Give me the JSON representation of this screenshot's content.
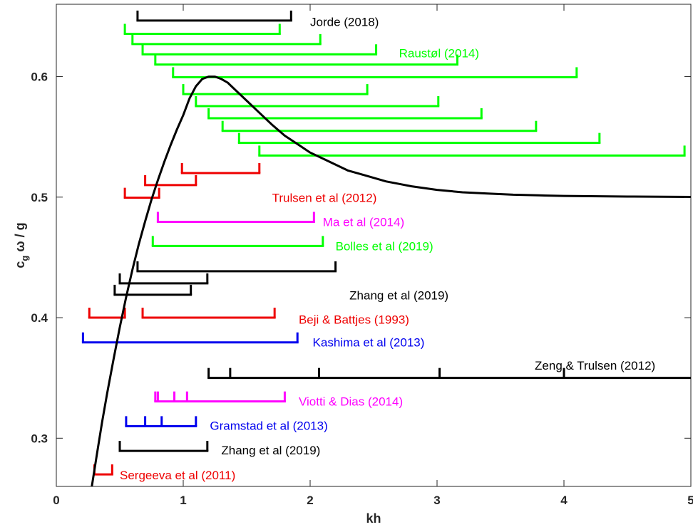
{
  "chart_data": {
    "type": "line",
    "xlabel": "kh",
    "ylabel": "c_g ω / g",
    "xlim": [
      0,
      5
    ],
    "ylim": [
      0.26,
      0.66
    ],
    "xticks": [
      0,
      1,
      2,
      3,
      4,
      5
    ],
    "yticks": [
      0.3,
      0.4,
      0.5,
      0.6
    ],
    "grid": false,
    "legend": "none",
    "colors": {
      "black": "#000000",
      "green": "#00ff00",
      "red": "#ee0000",
      "magenta": "#ff00ff",
      "blue": "#0000ee"
    },
    "curve": {
      "name": "",
      "color": "black",
      "points": [
        [
          0.28,
          0.26
        ],
        [
          0.32,
          0.287
        ],
        [
          0.36,
          0.313
        ],
        [
          0.4,
          0.337
        ],
        [
          0.45,
          0.365
        ],
        [
          0.5,
          0.392
        ],
        [
          0.55,
          0.417
        ],
        [
          0.6,
          0.44
        ],
        [
          0.65,
          0.461
        ],
        [
          0.7,
          0.48
        ],
        [
          0.75,
          0.498
        ],
        [
          0.8,
          0.514
        ],
        [
          0.85,
          0.529
        ],
        [
          0.9,
          0.543
        ],
        [
          0.95,
          0.556
        ],
        [
          1.0,
          0.568
        ],
        [
          1.05,
          0.582
        ],
        [
          1.1,
          0.592
        ],
        [
          1.15,
          0.598
        ],
        [
          1.2,
          0.6
        ],
        [
          1.25,
          0.6
        ],
        [
          1.3,
          0.598
        ],
        [
          1.35,
          0.595
        ],
        [
          1.4,
          0.59
        ],
        [
          1.5,
          0.58
        ],
        [
          1.6,
          0.57
        ],
        [
          1.7,
          0.56
        ],
        [
          1.8,
          0.551
        ],
        [
          1.9,
          0.544
        ],
        [
          2.0,
          0.537
        ],
        [
          2.1,
          0.532
        ],
        [
          2.2,
          0.527
        ],
        [
          2.3,
          0.522
        ],
        [
          2.4,
          0.519
        ],
        [
          2.5,
          0.516
        ],
        [
          2.6,
          0.513
        ],
        [
          2.7,
          0.511
        ],
        [
          2.8,
          0.509
        ],
        [
          3.0,
          0.506
        ],
        [
          3.2,
          0.504
        ],
        [
          3.4,
          0.503
        ],
        [
          3.6,
          0.502
        ],
        [
          3.8,
          0.5015
        ],
        [
          4.0,
          0.501
        ],
        [
          4.5,
          0.5005
        ],
        [
          5.0,
          0.5002
        ]
      ]
    },
    "brackets": [
      {
        "color": "black",
        "y": 0.6465,
        "x0": 0.64,
        "x1": 1.85,
        "ticks": []
      },
      {
        "color": "green",
        "y": 0.6355,
        "x0": 0.54,
        "x1": 1.76,
        "ticks": []
      },
      {
        "color": "green",
        "y": 0.627,
        "x0": 0.6,
        "x1": 2.08,
        "ticks": []
      },
      {
        "color": "green",
        "y": 0.6185,
        "x0": 0.68,
        "x1": 2.52,
        "ticks": []
      },
      {
        "color": "green",
        "y": 0.61,
        "x0": 0.78,
        "x1": 3.16,
        "ticks": []
      },
      {
        "color": "green",
        "y": 0.5995,
        "x0": 0.92,
        "x1": 4.1,
        "ticks": []
      },
      {
        "color": "green",
        "y": 0.5855,
        "x0": 1.0,
        "x1": 2.45,
        "ticks": []
      },
      {
        "color": "green",
        "y": 0.5755,
        "x0": 1.1,
        "x1": 3.01,
        "ticks": []
      },
      {
        "color": "green",
        "y": 0.5655,
        "x0": 1.2,
        "x1": 3.35,
        "ticks": []
      },
      {
        "color": "green",
        "y": 0.555,
        "x0": 1.31,
        "x1": 3.78,
        "ticks": []
      },
      {
        "color": "green",
        "y": 0.545,
        "x0": 1.44,
        "x1": 4.28,
        "ticks": []
      },
      {
        "color": "green",
        "y": 0.5345,
        "x0": 1.6,
        "x1": 4.95,
        "ticks": []
      },
      {
        "color": "red",
        "y": 0.52,
        "x0": 0.99,
        "x1": 1.6,
        "ticks": []
      },
      {
        "color": "red",
        "y": 0.51,
        "x0": 0.7,
        "x1": 1.1,
        "ticks": []
      },
      {
        "color": "red",
        "y": 0.4995,
        "x0": 0.54,
        "x1": 0.81,
        "ticks": []
      },
      {
        "color": "magenta",
        "y": 0.4795,
        "x0": 0.8,
        "x1": 2.03,
        "ticks": []
      },
      {
        "color": "green",
        "y": 0.4595,
        "x0": 0.76,
        "x1": 2.1,
        "ticks": []
      },
      {
        "color": "black",
        "y": 0.4385,
        "x0": 0.64,
        "x1": 2.2,
        "ticks": []
      },
      {
        "color": "black",
        "y": 0.4285,
        "x0": 0.5,
        "x1": 1.19,
        "ticks": []
      },
      {
        "color": "black",
        "y": 0.419,
        "x0": 0.46,
        "x1": 1.06,
        "ticks": []
      },
      {
        "color": "red",
        "y": 0.4,
        "x0": 0.26,
        "x1": 0.54,
        "ticks": []
      },
      {
        "color": "red",
        "y": 0.4,
        "x0": 0.68,
        "x1": 1.72,
        "ticks": []
      },
      {
        "color": "blue",
        "y": 0.3795,
        "x0": 0.21,
        "x1": 1.9,
        "ticks": []
      },
      {
        "color": "black",
        "y": 0.35,
        "x0": 1.2,
        "x1": 5.0,
        "ticks": [
          1.37,
          2.07,
          3.02,
          4.0
        ]
      },
      {
        "color": "magenta",
        "y": 0.3305,
        "x0": 0.78,
        "x1": 1.8,
        "ticks": [
          0.8,
          0.93,
          1.03
        ]
      },
      {
        "color": "blue",
        "y": 0.31,
        "x0": 0.55,
        "x1": 1.1,
        "ticks": [
          0.7,
          0.83
        ]
      },
      {
        "color": "black",
        "y": 0.2895,
        "x0": 0.5,
        "x1": 1.19,
        "ticks": []
      },
      {
        "color": "red",
        "y": 0.27,
        "x0": 0.3,
        "x1": 0.44,
        "ticks": []
      }
    ],
    "annotations": [
      {
        "text": "Jorde (2018)",
        "x": 2.0,
        "y": 0.6455,
        "color": "black"
      },
      {
        "text": "Raustøl (2014)",
        "x": 2.7,
        "y": 0.6195,
        "color": "green"
      },
      {
        "text": "Trulsen et al (2012)",
        "x": 1.7,
        "y": 0.4995,
        "color": "red"
      },
      {
        "text": "Ma et al (2014)",
        "x": 2.1,
        "y": 0.4795,
        "color": "magenta"
      },
      {
        "text": "Bolles et al (2019)",
        "x": 2.2,
        "y": 0.4595,
        "color": "green"
      },
      {
        "text": "Zhang et al (2019)",
        "x": 2.31,
        "y": 0.4185,
        "color": "black"
      },
      {
        "text": "Beji & Battjes (1993)",
        "x": 1.91,
        "y": 0.3985,
        "color": "red"
      },
      {
        "text": "Kashima et al (2013)",
        "x": 2.02,
        "y": 0.3795,
        "color": "blue"
      },
      {
        "text": "Zeng & Trulsen (2012)",
        "x": 3.77,
        "y": 0.3605,
        "color": "black"
      },
      {
        "text": "Viotti & Dias (2014)",
        "x": 1.91,
        "y": 0.3305,
        "color": "magenta"
      },
      {
        "text": "Gramstad et al (2013)",
        "x": 1.21,
        "y": 0.3105,
        "color": "blue"
      },
      {
        "text": "Zhang et al (2019)",
        "x": 1.3,
        "y": 0.29,
        "color": "black"
      },
      {
        "text": "Sergeeva et al (2011)",
        "x": 0.5,
        "y": 0.2695,
        "color": "red"
      }
    ]
  }
}
